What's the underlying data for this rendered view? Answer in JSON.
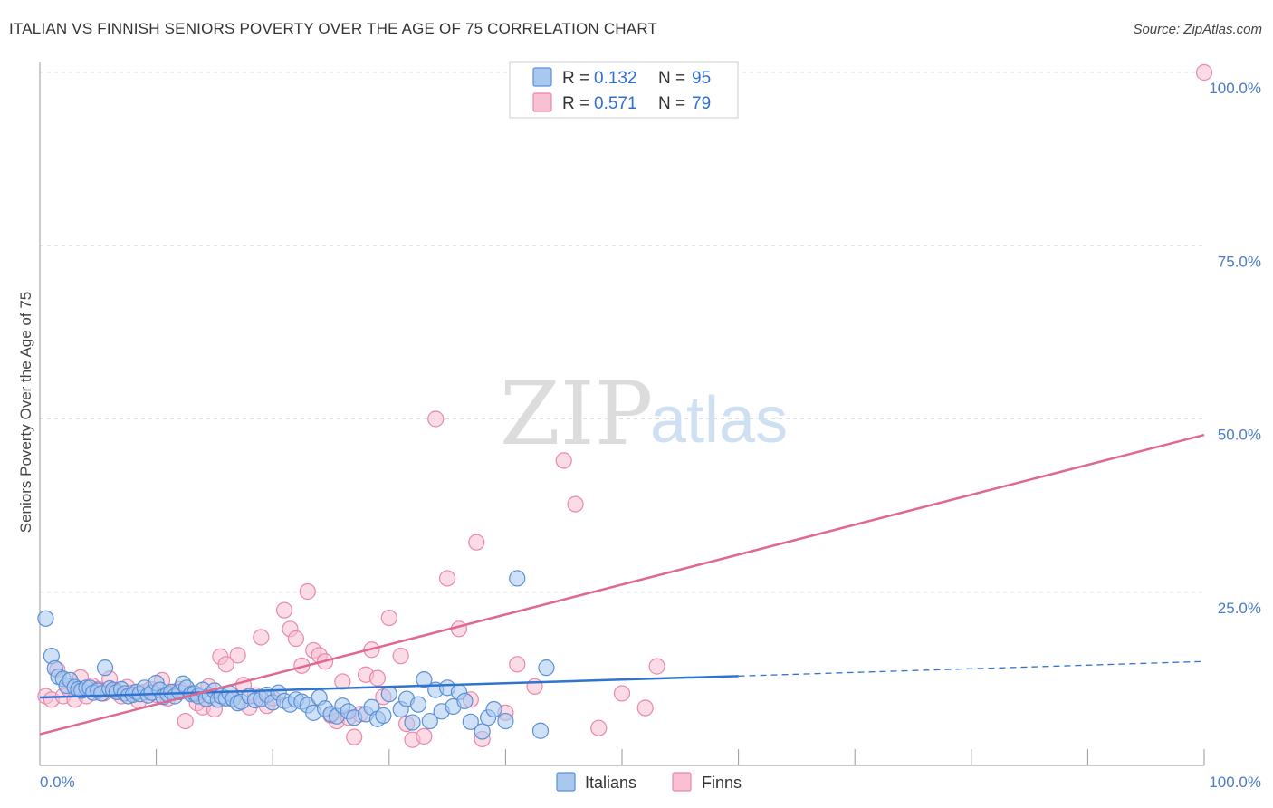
{
  "title": "ITALIAN VS FINNISH SENIORS POVERTY OVER THE AGE OF 75 CORRELATION CHART",
  "source": "Source: ZipAtlas.com",
  "watermark": {
    "zip": "ZIP",
    "atlas": "atlas"
  },
  "colors": {
    "italians_fill": "#a8c8f0",
    "italians_stroke": "#5b8fd6",
    "italians_line": "#2f74d0",
    "finns_fill": "#f8c0d2",
    "finns_stroke": "#e888a8",
    "finns_line": "#e06890",
    "grid": "#dddddd",
    "axis": "#999999"
  },
  "legend_top": [
    {
      "r_label": "R = ",
      "r_value": "0.132",
      "n_label": "N = ",
      "n_value": "95"
    },
    {
      "r_label": "R = ",
      "r_value": "0.571",
      "n_label": "N = ",
      "n_value": "79"
    }
  ],
  "legend_bottom": [
    "Italians",
    "Finns"
  ],
  "chart_data": {
    "type": "scatter",
    "ylabel": "Seniors Poverty Over the Age of 75",
    "xlim": [
      0,
      100
    ],
    "ylim": [
      0,
      100
    ],
    "y_ticks": [
      "100.0%",
      "75.0%",
      "50.0%",
      "25.0%"
    ],
    "y_tick_values": [
      100,
      75,
      50,
      25
    ],
    "x_ticks": [
      "0.0%",
      "100.0%"
    ],
    "x_tick_values": [
      0,
      100
    ],
    "grid": true,
    "series": [
      {
        "name": "Italians",
        "trend": {
          "x": [
            0,
            60,
            100
          ],
          "y": [
            9.8,
            12.9,
            15.0
          ],
          "solid_to": 60
        },
        "points": [
          [
            0.5,
            21.2
          ],
          [
            1,
            15.8
          ],
          [
            1.3,
            14
          ],
          [
            1.6,
            12.8
          ],
          [
            2,
            12.5
          ],
          [
            2.3,
            11.5
          ],
          [
            2.6,
            12.3
          ],
          [
            3,
            11.3
          ],
          [
            3.3,
            11
          ],
          [
            3.6,
            10.8
          ],
          [
            4,
            11.2
          ],
          [
            4.3,
            11.2
          ],
          [
            4.6,
            10.5
          ],
          [
            5,
            10.8
          ],
          [
            5.3,
            10.4
          ],
          [
            5.6,
            14.1
          ],
          [
            6,
            11.1
          ],
          [
            6.3,
            10.9
          ],
          [
            6.6,
            10.6
          ],
          [
            7,
            11
          ],
          [
            7.3,
            10.4
          ],
          [
            7.6,
            10
          ],
          [
            8,
            10.2
          ],
          [
            8.3,
            10.6
          ],
          [
            8.6,
            10.3
          ],
          [
            9,
            11.2
          ],
          [
            9.3,
            10.1
          ],
          [
            9.6,
            10.5
          ],
          [
            10,
            11.9
          ],
          [
            10.3,
            10.9
          ],
          [
            10.6,
            9.9
          ],
          [
            11,
            10.3
          ],
          [
            11.3,
            10.6
          ],
          [
            11.6,
            10
          ],
          [
            12,
            10.6
          ],
          [
            12.3,
            11.8
          ],
          [
            12.6,
            11.2
          ],
          [
            13,
            10.3
          ],
          [
            13.3,
            10.4
          ],
          [
            13.6,
            10
          ],
          [
            14,
            10.9
          ],
          [
            14.3,
            9.6
          ],
          [
            14.6,
            10.1
          ],
          [
            15,
            10.8
          ],
          [
            15.3,
            9.5
          ],
          [
            15.6,
            10
          ],
          [
            16,
            9.7
          ],
          [
            16.3,
            10.4
          ],
          [
            16.6,
            9.6
          ],
          [
            17,
            9
          ],
          [
            17.3,
            9.2
          ],
          [
            18,
            10
          ],
          [
            18.5,
            9.4
          ],
          [
            19,
            9.6
          ],
          [
            19.5,
            10.2
          ],
          [
            20,
            9.1
          ],
          [
            20.5,
            10.5
          ],
          [
            21,
            9.3
          ],
          [
            21.5,
            8.8
          ],
          [
            22,
            9.5
          ],
          [
            22.5,
            9.2
          ],
          [
            23,
            8.7
          ],
          [
            23.5,
            7.6
          ],
          [
            24,
            9.8
          ],
          [
            24.5,
            8.2
          ],
          [
            25,
            7.4
          ],
          [
            25.5,
            7.1
          ],
          [
            26,
            8.6
          ],
          [
            26.5,
            7.8
          ],
          [
            27,
            6.9
          ],
          [
            28,
            7.4
          ],
          [
            28.5,
            8.4
          ],
          [
            29,
            6.7
          ],
          [
            29.5,
            7.2
          ],
          [
            30,
            10.3
          ],
          [
            31,
            8.1
          ],
          [
            31.5,
            9.6
          ],
          [
            32,
            6.2
          ],
          [
            32.5,
            8.8
          ],
          [
            33,
            12.4
          ],
          [
            33.5,
            6.4
          ],
          [
            34,
            10.9
          ],
          [
            34.5,
            7.8
          ],
          [
            35,
            11.2
          ],
          [
            35.5,
            8.5
          ],
          [
            36,
            10.6
          ],
          [
            36.5,
            9.3
          ],
          [
            37,
            6.3
          ],
          [
            38,
            4.9
          ],
          [
            38.5,
            6.9
          ],
          [
            39,
            8.1
          ],
          [
            40,
            6.4
          ],
          [
            41,
            27.0
          ],
          [
            43,
            5.0
          ],
          [
            43.5,
            14.1
          ]
        ]
      },
      {
        "name": "Finns",
        "trend": {
          "x": [
            0,
            100
          ],
          "y": [
            4.5,
            47.7
          ]
        },
        "points": [
          [
            0.5,
            10
          ],
          [
            1,
            9.5
          ],
          [
            1.5,
            13.8
          ],
          [
            2,
            10
          ],
          [
            2.5,
            11
          ],
          [
            3,
            9.5
          ],
          [
            3.5,
            12.7
          ],
          [
            4,
            10
          ],
          [
            4.5,
            11.5
          ],
          [
            5,
            11
          ],
          [
            5.5,
            10.4
          ],
          [
            6,
            12.5
          ],
          [
            6.5,
            10.8
          ],
          [
            7,
            10
          ],
          [
            7.5,
            11.3
          ],
          [
            8,
            10.5
          ],
          [
            8.5,
            9.3
          ],
          [
            9,
            10.6
          ],
          [
            9.5,
            11
          ],
          [
            10,
            10.2
          ],
          [
            10.5,
            12.3
          ],
          [
            11,
            9.7
          ],
          [
            11.5,
            10.6
          ],
          [
            12,
            11
          ],
          [
            12.5,
            6.4
          ],
          [
            13,
            10.5
          ],
          [
            13.5,
            9
          ],
          [
            14,
            8.4
          ],
          [
            14.5,
            11.4
          ],
          [
            15,
            8.1
          ],
          [
            15.5,
            15.7
          ],
          [
            16,
            14.6
          ],
          [
            16.5,
            9.6
          ],
          [
            17,
            15.9
          ],
          [
            17.5,
            11.6
          ],
          [
            18,
            8.4
          ],
          [
            18.5,
            10.1
          ],
          [
            19,
            18.5
          ],
          [
            19.5,
            8.6
          ],
          [
            20,
            9.7
          ],
          [
            21,
            22.4
          ],
          [
            21.5,
            19.7
          ],
          [
            22,
            18.3
          ],
          [
            22.5,
            14.4
          ],
          [
            23,
            25.1
          ],
          [
            23.5,
            16.6
          ],
          [
            24,
            15.9
          ],
          [
            24.5,
            15
          ],
          [
            25,
            7.2
          ],
          [
            25.5,
            6.4
          ],
          [
            26,
            12.1
          ],
          [
            26.5,
            6.9
          ],
          [
            27,
            4.1
          ],
          [
            27.5,
            7.4
          ],
          [
            28,
            13.1
          ],
          [
            28.5,
            16.7
          ],
          [
            29,
            12.6
          ],
          [
            29.5,
            9.9
          ],
          [
            30,
            21.3
          ],
          [
            31,
            15.8
          ],
          [
            31.5,
            6
          ],
          [
            32,
            3.7
          ],
          [
            33,
            4.2
          ],
          [
            34,
            50
          ],
          [
            35,
            27
          ],
          [
            36,
            19.7
          ],
          [
            37,
            9.5
          ],
          [
            37.5,
            32.2
          ],
          [
            38,
            3.8
          ],
          [
            40,
            7.6
          ],
          [
            41,
            14.6
          ],
          [
            42.5,
            11.4
          ],
          [
            45,
            44
          ],
          [
            46,
            37.7
          ],
          [
            48,
            5.4
          ],
          [
            50,
            10.4
          ],
          [
            52,
            8.3
          ],
          [
            53,
            14.3
          ],
          [
            100,
            100
          ]
        ]
      }
    ]
  }
}
